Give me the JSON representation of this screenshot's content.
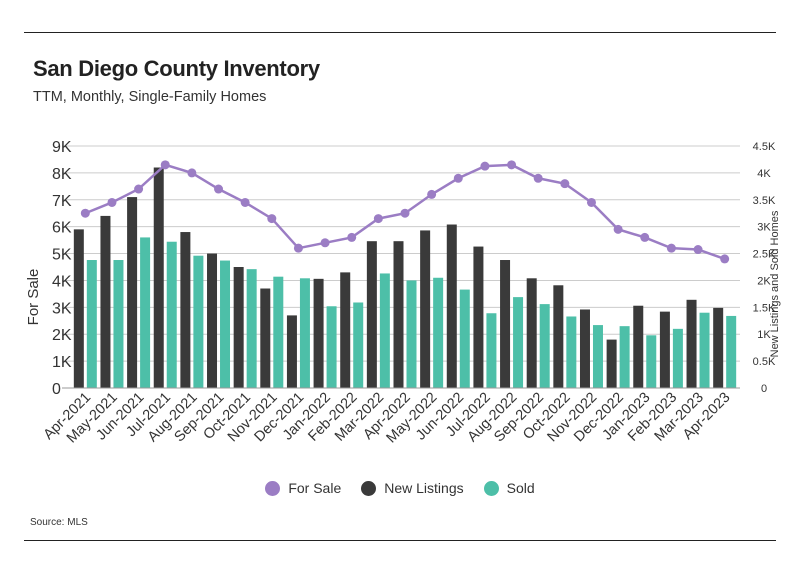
{
  "header": {
    "title": "San Diego County Inventory",
    "subtitle": "TTM, Monthly, Single-Family Homes"
  },
  "footer": {
    "source": "Source:  MLS"
  },
  "colors": {
    "for_sale": "#9b7dc4",
    "new_listings": "#3a3a3a",
    "sold": "#4dbfa8",
    "grid": "#cccccc"
  },
  "chart_data": {
    "type": "bar",
    "categories": [
      "Apr-2021",
      "May-2021",
      "Jun-2021",
      "Jul-2021",
      "Aug-2021",
      "Sep-2021",
      "Oct-2021",
      "Nov-2021",
      "Dec-2021",
      "Jan-2022",
      "Feb-2022",
      "Mar-2022",
      "Apr-2022",
      "May-2022",
      "Jun-2022",
      "Jul-2022",
      "Aug-2022",
      "Sep-2022",
      "Oct-2022",
      "Nov-2022",
      "Dec-2022",
      "Jan-2023",
      "Feb-2023",
      "Mar-2023",
      "Apr-2023"
    ],
    "series": [
      {
        "name": "For Sale",
        "type": "line",
        "axis": "left",
        "values": [
          6500,
          6900,
          7400,
          8300,
          8000,
          7400,
          6900,
          6300,
          5200,
          5400,
          5600,
          6300,
          6500,
          7200,
          7800,
          8250,
          8300,
          7800,
          7600,
          6900,
          5900,
          5600,
          5200,
          5150,
          4800
        ]
      },
      {
        "name": "New Listings",
        "type": "bar",
        "axis": "right",
        "values": [
          2950,
          3200,
          3550,
          4100,
          2900,
          2500,
          2250,
          1850,
          1350,
          2030,
          2150,
          2730,
          2730,
          2930,
          3040,
          2630,
          2380,
          2040,
          1910,
          1460,
          900,
          1530,
          1420,
          1640,
          1490
        ]
      },
      {
        "name": "Sold",
        "type": "bar",
        "axis": "right",
        "values": [
          2380,
          2380,
          2800,
          2720,
          2460,
          2370,
          2210,
          2070,
          2040,
          1520,
          1590,
          2130,
          2000,
          2050,
          1830,
          1390,
          1690,
          1560,
          1330,
          1170,
          1150,
          980,
          1100,
          1400,
          1340
        ]
      }
    ],
    "ylabel": "For Sale",
    "y2label": "New Listings and Sold Homes",
    "ylim": [
      0,
      9000
    ],
    "y2lim": [
      0,
      4500
    ],
    "yticks": [
      "0",
      "1K",
      "2K",
      "3K",
      "4K",
      "5K",
      "6K",
      "7K",
      "8K",
      "9K"
    ],
    "y2ticks": [
      "0",
      "0.5K",
      "1K",
      "1.5K",
      "2K",
      "2.5K",
      "3K",
      "3.5K",
      "4K",
      "4.5K"
    ],
    "grid": true,
    "legend_position": "bottom"
  }
}
